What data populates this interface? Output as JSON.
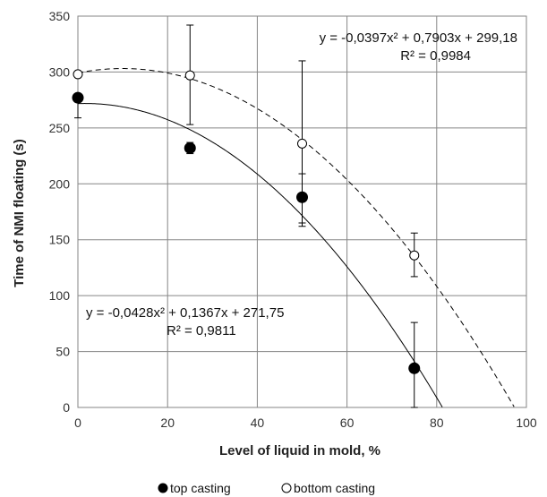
{
  "chart_data": {
    "type": "scatter",
    "xlabel": "Level of liquid in mold, %",
    "ylabel": "Time of NMI floating (s)",
    "xlim": [
      0,
      100
    ],
    "ylim": [
      0,
      350
    ],
    "xticks": [
      "0",
      "20",
      "40",
      "60",
      "80",
      "100"
    ],
    "yticks": [
      "0",
      "50",
      "100",
      "150",
      "200",
      "250",
      "300",
      "350"
    ],
    "grid": true,
    "legend_position": "bottom",
    "series": [
      {
        "name": "top casting",
        "marker": "filled-circle",
        "color": "#000000",
        "x": [
          0,
          25,
          50,
          75
        ],
        "y": [
          277,
          232,
          188,
          35
        ],
        "err_low": [
          259,
          227,
          162,
          0
        ],
        "err_high": [
          280,
          237,
          209,
          76
        ],
        "trendline": {
          "style": "solid",
          "a": -0.0428,
          "b": 0.1367,
          "c": 271.75,
          "equation_text": "y = -0,0428x² + 0,1367x + 271,75",
          "r2_text": "R² = 0,9811"
        }
      },
      {
        "name": "bottom casting",
        "marker": "open-circle",
        "color": "#000000",
        "x": [
          0,
          25,
          50,
          75
        ],
        "y": [
          298,
          297,
          236,
          136
        ],
        "err_low": [
          297,
          253,
          165,
          117
        ],
        "err_high": [
          299,
          342,
          310,
          156
        ],
        "trendline": {
          "style": "dashed",
          "a": -0.0397,
          "b": 0.7903,
          "c": 299.18,
          "equation_text": "y = -0,0397x² + 0,7903x + 299,18",
          "r2_text": "R² = 0,9984"
        }
      }
    ]
  }
}
